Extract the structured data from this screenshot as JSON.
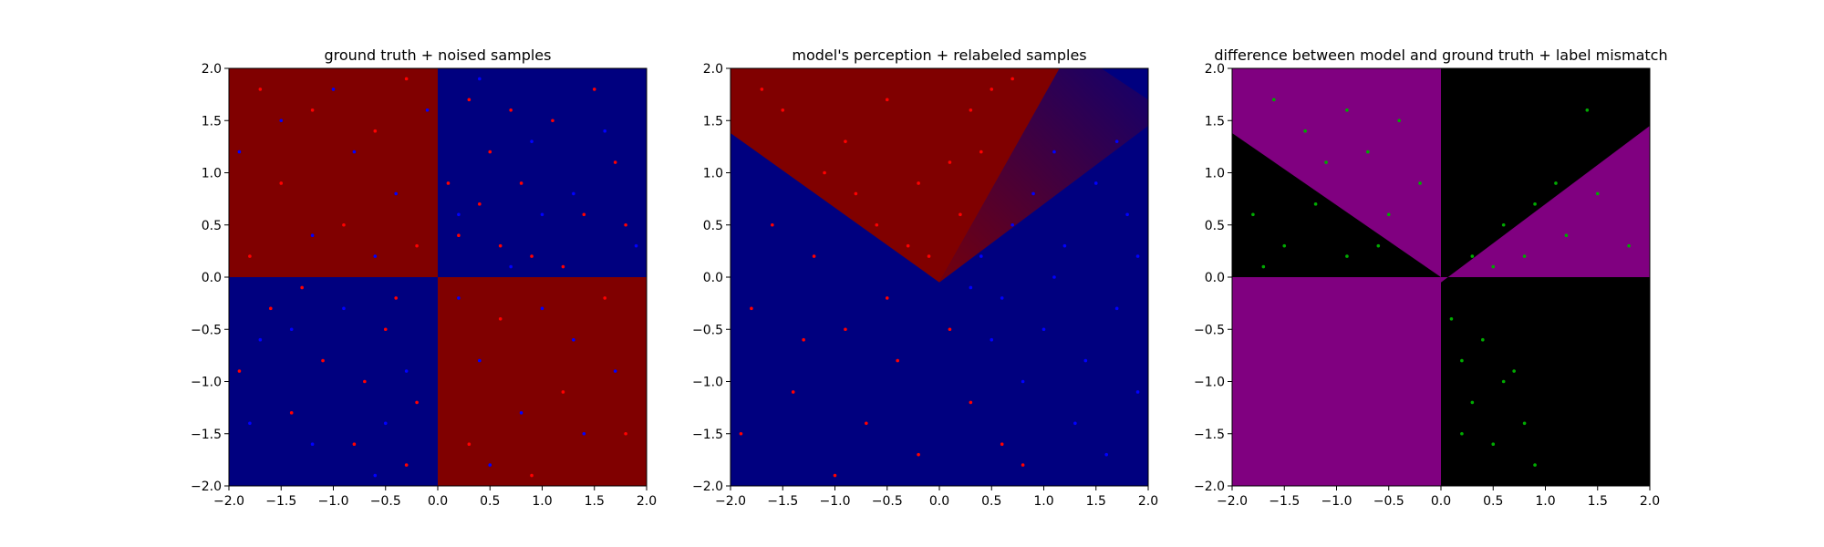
{
  "chart_data": [
    {
      "type": "heatmap",
      "title": "ground truth + noised samples",
      "xlim": [
        -2.0,
        2.0
      ],
      "ylim": [
        -2.0,
        2.0
      ],
      "x_ticks": [
        "−2.0",
        "−1.5",
        "−1.0",
        "−0.5",
        "0.0",
        "0.5",
        "1.0",
        "1.5",
        "2.0"
      ],
      "y_ticks": [
        "−2.0",
        "−1.5",
        "−1.0",
        "−0.5",
        "0.0",
        "0.5",
        "1.0",
        "1.5",
        "2.0"
      ],
      "x_tick_values": [
        -2.0,
        -1.5,
        -1.0,
        -0.5,
        0.0,
        0.5,
        1.0,
        1.5,
        2.0
      ],
      "y_tick_values": [
        -2.0,
        -1.5,
        -1.0,
        -0.5,
        0.0,
        0.5,
        1.0,
        1.5,
        2.0
      ],
      "regions": [
        {
          "x": [
            -2.0,
            0.0
          ],
          "y": [
            0.0,
            2.0
          ],
          "color": "#800000"
        },
        {
          "x": [
            0.0,
            2.0
          ],
          "y": [
            0.0,
            2.0
          ],
          "color": "#00007f"
        },
        {
          "x": [
            -2.0,
            0.0
          ],
          "y": [
            -2.0,
            0.0
          ],
          "color": "#00007f"
        },
        {
          "x": [
            0.0,
            2.0
          ],
          "y": [
            -2.0,
            0.0
          ],
          "color": "#800000"
        }
      ],
      "series": [
        {
          "color": "#ff0000",
          "points": [
            [
              -1.7,
              1.8
            ],
            [
              -1.2,
              1.6
            ],
            [
              -0.6,
              1.4
            ],
            [
              -0.3,
              1.9
            ],
            [
              -1.5,
              0.9
            ],
            [
              -0.9,
              0.5
            ],
            [
              -0.2,
              0.3
            ],
            [
              -1.8,
              0.2
            ],
            [
              0.3,
              1.7
            ],
            [
              0.5,
              1.2
            ],
            [
              0.8,
              0.9
            ],
            [
              1.1,
              1.5
            ],
            [
              1.4,
              0.6
            ],
            [
              0.2,
              0.4
            ],
            [
              0.6,
              0.3
            ],
            [
              1.7,
              1.1
            ],
            [
              0.9,
              0.2
            ],
            [
              0.4,
              0.7
            ],
            [
              1.2,
              0.1
            ],
            [
              1.8,
              0.5
            ],
            [
              -1.6,
              -0.3
            ],
            [
              -1.1,
              -0.8
            ],
            [
              -0.5,
              -0.5
            ],
            [
              -0.2,
              -1.2
            ],
            [
              -0.8,
              -1.6
            ],
            [
              -1.4,
              -1.3
            ],
            [
              -0.3,
              -1.8
            ],
            [
              -1.9,
              -0.9
            ],
            [
              0.6,
              -0.4
            ],
            [
              1.2,
              -1.1
            ],
            [
              1.6,
              -0.2
            ],
            [
              0.3,
              -1.6
            ],
            [
              0.9,
              -1.9
            ],
            [
              1.8,
              -1.5
            ],
            [
              -0.4,
              -0.2
            ],
            [
              -1.3,
              -0.1
            ],
            [
              0.1,
              0.9
            ],
            [
              -0.7,
              -1.0
            ],
            [
              0.7,
              1.6
            ],
            [
              1.5,
              1.8
            ]
          ]
        },
        {
          "color": "#0000ff",
          "points": [
            [
              -1.5,
              1.5
            ],
            [
              -0.8,
              1.2
            ],
            [
              -0.4,
              0.8
            ],
            [
              -1.2,
              0.4
            ],
            [
              -0.1,
              1.6
            ],
            [
              -1.9,
              1.2
            ],
            [
              -0.6,
              0.2
            ],
            [
              -1.0,
              1.8
            ],
            [
              0.4,
              1.9
            ],
            [
              0.9,
              1.3
            ],
            [
              1.3,
              0.8
            ],
            [
              0.2,
              0.6
            ],
            [
              1.6,
              1.4
            ],
            [
              0.7,
              0.1
            ],
            [
              1.9,
              0.3
            ],
            [
              1.0,
              0.6
            ],
            [
              -1.7,
              -0.6
            ],
            [
              -0.9,
              -0.3
            ],
            [
              -0.3,
              -0.9
            ],
            [
              -1.2,
              -1.6
            ],
            [
              -0.6,
              -1.9
            ],
            [
              -1.8,
              -1.4
            ],
            [
              0.4,
              -0.8
            ],
            [
              1.0,
              -0.3
            ],
            [
              1.4,
              -1.5
            ],
            [
              0.2,
              -0.2
            ],
            [
              1.7,
              -0.9
            ],
            [
              0.8,
              -1.3
            ],
            [
              0.5,
              -1.8
            ],
            [
              1.3,
              -0.6
            ],
            [
              -0.5,
              -1.4
            ],
            [
              -1.4,
              -0.5
            ]
          ]
        }
      ]
    },
    {
      "type": "heatmap",
      "title": "model's perception + relabeled samples",
      "xlim": [
        -2.0,
        2.0
      ],
      "ylim": [
        -2.0,
        2.0
      ],
      "x_ticks": [
        "−2.0",
        "−1.5",
        "−1.0",
        "−0.5",
        "0.0",
        "0.5",
        "1.0",
        "1.5",
        "2.0"
      ],
      "y_ticks": [
        "−2.0",
        "−1.5",
        "−1.0",
        "−0.5",
        "0.0",
        "0.5",
        "1.0",
        "1.5",
        "2.0"
      ],
      "x_tick_values": [
        -2.0,
        -1.5,
        -1.0,
        -0.5,
        0.0,
        0.5,
        1.0,
        1.5,
        2.0
      ],
      "y_tick_values": [
        -2.0,
        -1.5,
        -1.0,
        -0.5,
        0.0,
        0.5,
        1.0,
        1.5,
        2.0
      ],
      "background": "#00007f",
      "decision_region": {
        "color": "#800000",
        "polygon": [
          [
            -2.0,
            1.38
          ],
          [
            0.0,
            -0.05
          ],
          [
            1.15,
            2.0
          ],
          [
            -2.0,
            2.0
          ]
        ]
      },
      "fuzzy_band": {
        "color": "#800000",
        "polygon": [
          [
            0.0,
            -0.05
          ],
          [
            1.15,
            2.0
          ],
          [
            1.55,
            2.0
          ],
          [
            2.0,
            1.7
          ],
          [
            2.0,
            1.45
          ]
        ]
      },
      "series": [
        {
          "color": "#ff0000",
          "points": [
            [
              -1.5,
              1.6
            ],
            [
              -0.9,
              1.3
            ],
            [
              -0.5,
              1.7
            ],
            [
              -0.2,
              0.9
            ],
            [
              -0.6,
              0.5
            ],
            [
              -0.3,
              0.3
            ],
            [
              0.1,
              1.1
            ],
            [
              0.3,
              1.6
            ],
            [
              0.5,
              1.8
            ],
            [
              0.2,
              0.6
            ],
            [
              -1.1,
              1.0
            ],
            [
              -1.7,
              1.8
            ],
            [
              -0.8,
              0.8
            ],
            [
              0.4,
              1.2
            ],
            [
              0.7,
              1.9
            ],
            [
              -0.1,
              0.2
            ],
            [
              -1.6,
              0.5
            ],
            [
              -1.2,
              0.2
            ],
            [
              -1.8,
              -0.3
            ],
            [
              -0.9,
              -0.5
            ],
            [
              -0.4,
              -0.8
            ],
            [
              -1.4,
              -1.1
            ],
            [
              -0.7,
              -1.4
            ],
            [
              -0.2,
              -1.7
            ],
            [
              -1.0,
              -1.9
            ],
            [
              0.3,
              -1.2
            ],
            [
              0.6,
              -1.6
            ],
            [
              0.8,
              -1.8
            ],
            [
              -1.9,
              -1.5
            ],
            [
              -0.5,
              -0.2
            ],
            [
              -1.3,
              -0.6
            ],
            [
              0.1,
              -0.5
            ]
          ]
        },
        {
          "color": "#0000ff",
          "points": [
            [
              0.4,
              0.2
            ],
            [
              0.7,
              0.5
            ],
            [
              0.9,
              0.8
            ],
            [
              1.2,
              0.3
            ],
            [
              1.5,
              0.9
            ],
            [
              1.8,
              0.6
            ],
            [
              1.1,
              1.2
            ],
            [
              1.7,
              1.3
            ],
            [
              0.6,
              -0.2
            ],
            [
              1.0,
              -0.5
            ],
            [
              1.4,
              -0.8
            ],
            [
              1.7,
              -0.3
            ],
            [
              0.8,
              -1.0
            ],
            [
              1.3,
              -1.4
            ],
            [
              1.9,
              -1.1
            ],
            [
              0.5,
              -0.6
            ],
            [
              1.6,
              -1.7
            ],
            [
              1.1,
              0.0
            ],
            [
              1.9,
              0.2
            ],
            [
              0.3,
              -0.1
            ]
          ]
        }
      ]
    },
    {
      "type": "heatmap",
      "title": "difference between model and ground truth + label mismatch",
      "xlim": [
        -2.0,
        2.0
      ],
      "ylim": [
        -2.0,
        2.0
      ],
      "x_ticks": [
        "−2.0",
        "−1.5",
        "−1.0",
        "−0.5",
        "0.0",
        "0.5",
        "1.0",
        "1.5",
        "2.0"
      ],
      "y_ticks": [
        "−2.0",
        "−1.5",
        "−1.0",
        "−0.5",
        "0.0",
        "0.5",
        "1.0",
        "1.5",
        "2.0"
      ],
      "x_tick_values": [
        -2.0,
        -1.5,
        -1.0,
        -0.5,
        0.0,
        0.5,
        1.0,
        1.5,
        2.0
      ],
      "y_tick_values": [
        -2.0,
        -1.5,
        -1.0,
        -0.5,
        0.0,
        0.5,
        1.0,
        1.5,
        2.0
      ],
      "background": "#000000",
      "regions_poly": [
        {
          "color": "#800080",
          "polygon": [
            [
              -2.0,
              2.0
            ],
            [
              0.0,
              2.0
            ],
            [
              0.0,
              0.0
            ],
            [
              -2.0,
              1.38
            ]
          ]
        },
        {
          "color": "#800080",
          "polygon": [
            [
              0.0,
              0.0
            ],
            [
              2.0,
              0.0
            ],
            [
              2.0,
              1.45
            ],
            [
              0.0,
              -0.05
            ]
          ]
        },
        {
          "color": "#800080",
          "polygon": [
            [
              -2.0,
              0.0
            ],
            [
              0.0,
              0.0
            ],
            [
              0.0,
              -2.0
            ],
            [
              -2.0,
              -2.0
            ]
          ]
        }
      ],
      "series": [
        {
          "color": "#00aa00",
          "points": [
            [
              -1.6,
              1.7
            ],
            [
              -1.3,
              1.4
            ],
            [
              -0.9,
              1.6
            ],
            [
              -0.7,
              1.2
            ],
            [
              -0.4,
              1.5
            ],
            [
              -0.2,
              0.9
            ],
            [
              -1.1,
              1.1
            ],
            [
              -0.5,
              0.6
            ],
            [
              -1.8,
              0.6
            ],
            [
              -1.5,
              0.3
            ],
            [
              -1.2,
              0.7
            ],
            [
              -0.9,
              0.2
            ],
            [
              -0.6,
              0.3
            ],
            [
              -1.7,
              0.1
            ],
            [
              0.3,
              0.2
            ],
            [
              0.6,
              0.5
            ],
            [
              0.9,
              0.7
            ],
            [
              1.2,
              0.4
            ],
            [
              1.5,
              0.8
            ],
            [
              1.8,
              0.3
            ],
            [
              0.8,
              0.2
            ],
            [
              1.1,
              0.9
            ],
            [
              1.4,
              1.6
            ],
            [
              0.5,
              0.1
            ],
            [
              0.1,
              -0.4
            ],
            [
              0.2,
              -0.8
            ],
            [
              0.4,
              -0.6
            ],
            [
              0.3,
              -1.2
            ],
            [
              0.6,
              -1.0
            ],
            [
              0.8,
              -1.4
            ],
            [
              0.5,
              -1.6
            ],
            [
              0.9,
              -1.8
            ],
            [
              0.2,
              -1.5
            ],
            [
              0.7,
              -0.9
            ]
          ]
        }
      ]
    }
  ]
}
